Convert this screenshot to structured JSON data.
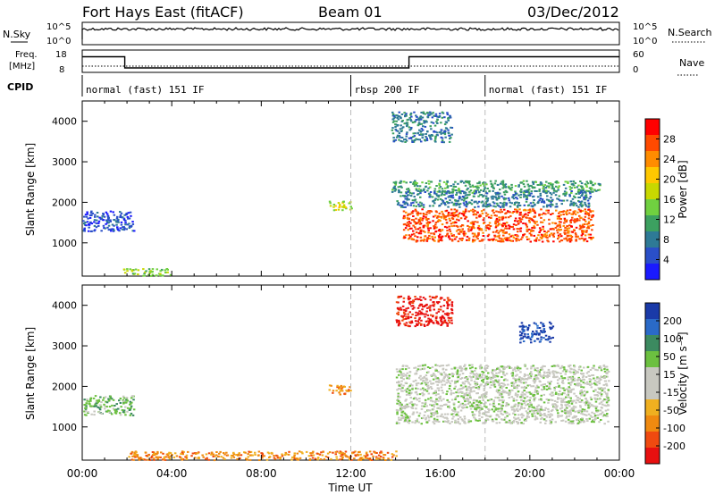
{
  "header": {
    "station": "Fort Hays East (fitACF)",
    "beam": "Beam 01",
    "date": "03/Dec/2012"
  },
  "top_panels": {
    "nsky": {
      "label": "N.Sky",
      "tick_high": "10^5",
      "tick_low": "10^0"
    },
    "nsearch": {
      "label": "N.Search",
      "tick_high": "10^5",
      "tick_low": "10^0"
    },
    "freq": {
      "label_line1": "Freq.",
      "label_line2": "[MHz]",
      "tick_high": "18",
      "tick_low": "8"
    },
    "nave": {
      "label": "Nave",
      "tick_high": "60",
      "tick_low": "0"
    },
    "cpid": {
      "label": "CPID",
      "segments": [
        {
          "name": "normal (fast) 151 IF",
          "start_hour": 0,
          "end_hour": 12
        },
        {
          "name": "rbsp 200 IF",
          "start_hour": 12,
          "end_hour": 18
        },
        {
          "name": "normal (fast) 151 IF",
          "start_hour": 18,
          "end_hour": 24
        }
      ]
    },
    "freq_steps": [
      {
        "from_hour": 0,
        "to_hour": 1.9,
        "mhz": 15
      },
      {
        "from_hour": 1.9,
        "to_hour": 14.6,
        "mhz": 10
      },
      {
        "from_hour": 14.6,
        "to_hour": 24,
        "mhz": 15
      }
    ]
  },
  "power_panel": {
    "ylabel": "Slant Range [km]",
    "colorbar_label": "Power [dB]",
    "colorbar_ticks": [
      "28",
      "24",
      "20",
      "16",
      "12",
      "8",
      "4"
    ],
    "colors": [
      "#ff0000",
      "#ff4a00",
      "#ff8c00",
      "#ffc800",
      "#c8d800",
      "#70d040",
      "#3ca060",
      "#2e7a96",
      "#2a4fc8",
      "#1a1aff"
    ]
  },
  "velocity_panel": {
    "ylabel": "Slant Range [km]",
    "colorbar_label": "Velocity [m s⁻¹]",
    "colorbar_ticks": [
      "200",
      "100",
      "50",
      "15",
      "-15",
      "-50",
      "-100",
      "-200"
    ],
    "colors": [
      "#1a3aa8",
      "#2a6ac8",
      "#3c8a60",
      "#6cc040",
      "#c8c8c0",
      "#c8c8c0",
      "#f0b020",
      "#f08a10",
      "#f04a10",
      "#e81010"
    ]
  },
  "chart_data": {
    "type": "heatmap",
    "xlabel": "Time UT",
    "x_ticks": [
      "00:00",
      "04:00",
      "08:00",
      "12:00",
      "16:00",
      "20:00",
      "00:00"
    ],
    "x_range_hours": [
      0,
      24
    ],
    "y_ticks": [
      "1000",
      "2000",
      "3000",
      "4000"
    ],
    "y_range_km": [
      180,
      4500
    ],
    "dashed_marks_hours": [
      12,
      18
    ],
    "power_regions": [
      {
        "t0": 0.0,
        "t1": 2.3,
        "r0": 1300,
        "r1": 1800,
        "color_index": 8
      },
      {
        "t0": 1.8,
        "t1": 4.0,
        "r0": 200,
        "r1": 380,
        "color_index": 5
      },
      {
        "t0": 11.0,
        "t1": 12.0,
        "r0": 1820,
        "r1": 2050,
        "color_index": 4
      },
      {
        "t0": 13.8,
        "t1": 23.2,
        "r0": 2250,
        "r1": 2550,
        "color_index": 6
      },
      {
        "t0": 14.3,
        "t1": 22.8,
        "r0": 1050,
        "r1": 1850,
        "color_index": 1
      },
      {
        "t0": 14.0,
        "t1": 22.8,
        "r0": 1900,
        "r1": 2300,
        "color_index": 7
      },
      {
        "t0": 13.8,
        "t1": 16.5,
        "r0": 3500,
        "r1": 4250,
        "color_index": 7
      }
    ],
    "velocity_regions": [
      {
        "t0": 0.0,
        "t1": 2.3,
        "r0": 1300,
        "r1": 1800,
        "color_index": 3
      },
      {
        "t0": 11.0,
        "t1": 12.0,
        "r0": 1820,
        "r1": 2050,
        "color_index": 7
      },
      {
        "t0": 14.0,
        "t1": 23.5,
        "r0": 1100,
        "r1": 2550,
        "color_index": 4
      },
      {
        "t0": 14.0,
        "t1": 16.5,
        "r0": 3500,
        "r1": 4250,
        "color_index": 9
      },
      {
        "t0": 19.5,
        "t1": 21.0,
        "r0": 3100,
        "r1": 3600,
        "color_index": 0
      },
      {
        "t0": 2.0,
        "t1": 14.0,
        "r0": 200,
        "r1": 420,
        "color_index": 7
      }
    ]
  }
}
